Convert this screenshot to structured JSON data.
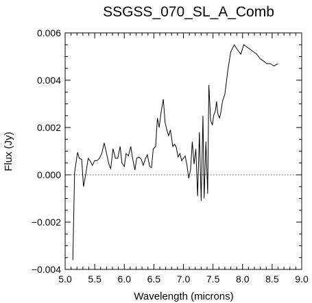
{
  "chart_data": {
    "type": "line",
    "title": "SSGSS_070_SL_A_Comb",
    "xlabel": "Wavelength (microns)",
    "ylabel": "Flux (Jy)",
    "xlim": [
      5.0,
      9.0
    ],
    "ylim": [
      -0.004,
      0.006
    ],
    "xticks": [
      5.0,
      5.5,
      6.0,
      6.5,
      7.0,
      7.5,
      8.0,
      8.5,
      9.0
    ],
    "xtick_labels": [
      "5.0",
      "5.5",
      "6.0",
      "6.5",
      "7.0",
      "7.5",
      "8.0",
      "8.5",
      "9.0"
    ],
    "yticks": [
      -0.004,
      -0.002,
      0.0,
      0.002,
      0.004,
      0.006
    ],
    "ytick_labels": [
      "−0.004",
      "−0.002",
      "0.000",
      "0.002",
      "0.004",
      "0.006"
    ],
    "grid": false,
    "zero_line": true,
    "series": [
      {
        "x": [
          5.13,
          5.16,
          5.21,
          5.24,
          5.28,
          5.31,
          5.35,
          5.39,
          5.42,
          5.46,
          5.5,
          5.54,
          5.58,
          5.62,
          5.66,
          5.7,
          5.74,
          5.77,
          5.81,
          5.85,
          5.89,
          5.93,
          5.96,
          6.0,
          6.03,
          6.07,
          6.11,
          6.14,
          6.18,
          6.21,
          6.25,
          6.29,
          6.32,
          6.36,
          6.39,
          6.43,
          6.46,
          6.49,
          6.53,
          6.56,
          6.59,
          6.62,
          6.66,
          6.69,
          6.72,
          6.75,
          6.78,
          6.82,
          6.85,
          6.88,
          6.91,
          6.94,
          6.97,
          7.0,
          7.03,
          7.06,
          7.09,
          7.12,
          7.15,
          7.18,
          7.21,
          7.24,
          7.27,
          7.3,
          7.33,
          7.35,
          7.38,
          7.41,
          7.43,
          7.46,
          7.49,
          7.51,
          7.54,
          7.56,
          7.58,
          7.61,
          7.63,
          7.66,
          7.7,
          7.75,
          7.8,
          7.86,
          7.91,
          7.97,
          8.02,
          8.13,
          8.24,
          8.3,
          8.36,
          8.41,
          8.47,
          8.53,
          8.6
        ],
        "y": [
          -0.0036,
          0.0001,
          0.00095,
          0.0007,
          0.00065,
          -0.0005,
          5e-05,
          0.0007,
          0.0006,
          0.0004,
          0.0006,
          0.0006,
          0.0007,
          0.0009,
          0.00135,
          0.0009,
          0.00045,
          0.00025,
          0.0011,
          0.0007,
          0.0007,
          0.0012,
          0.0005,
          0.00035,
          0.0009,
          0.0008,
          0.0012,
          0.0007,
          0.0002,
          0.0007,
          0.00075,
          0.00065,
          0.0004,
          0.0007,
          0.00085,
          0.00035,
          0.0003,
          0.0011,
          0.0012,
          0.0024,
          0.002,
          0.0026,
          0.0032,
          0.0022,
          0.0019,
          0.00165,
          0.0019,
          0.0012,
          0.0013,
          0.00115,
          0.00075,
          0.0009,
          0.0006,
          0.0007,
          0.0008,
          0.0004,
          -0.00015,
          0.0002,
          0.0014,
          0.00045,
          0.0011,
          -0.0009,
          0.0018,
          -0.0011,
          0.0025,
          -0.001,
          0.0014,
          -0.0008,
          0.0038,
          0.0023,
          0.0021,
          0.0025,
          0.0027,
          0.0031,
          0.0026,
          0.0024,
          0.0026,
          0.0031,
          0.0034,
          0.0044,
          0.0052,
          0.0055,
          0.0053,
          0.0051,
          0.0055,
          0.0053,
          0.0051,
          0.0049,
          0.0048,
          0.0047,
          0.0047,
          0.0046,
          0.0047
        ]
      }
    ]
  }
}
